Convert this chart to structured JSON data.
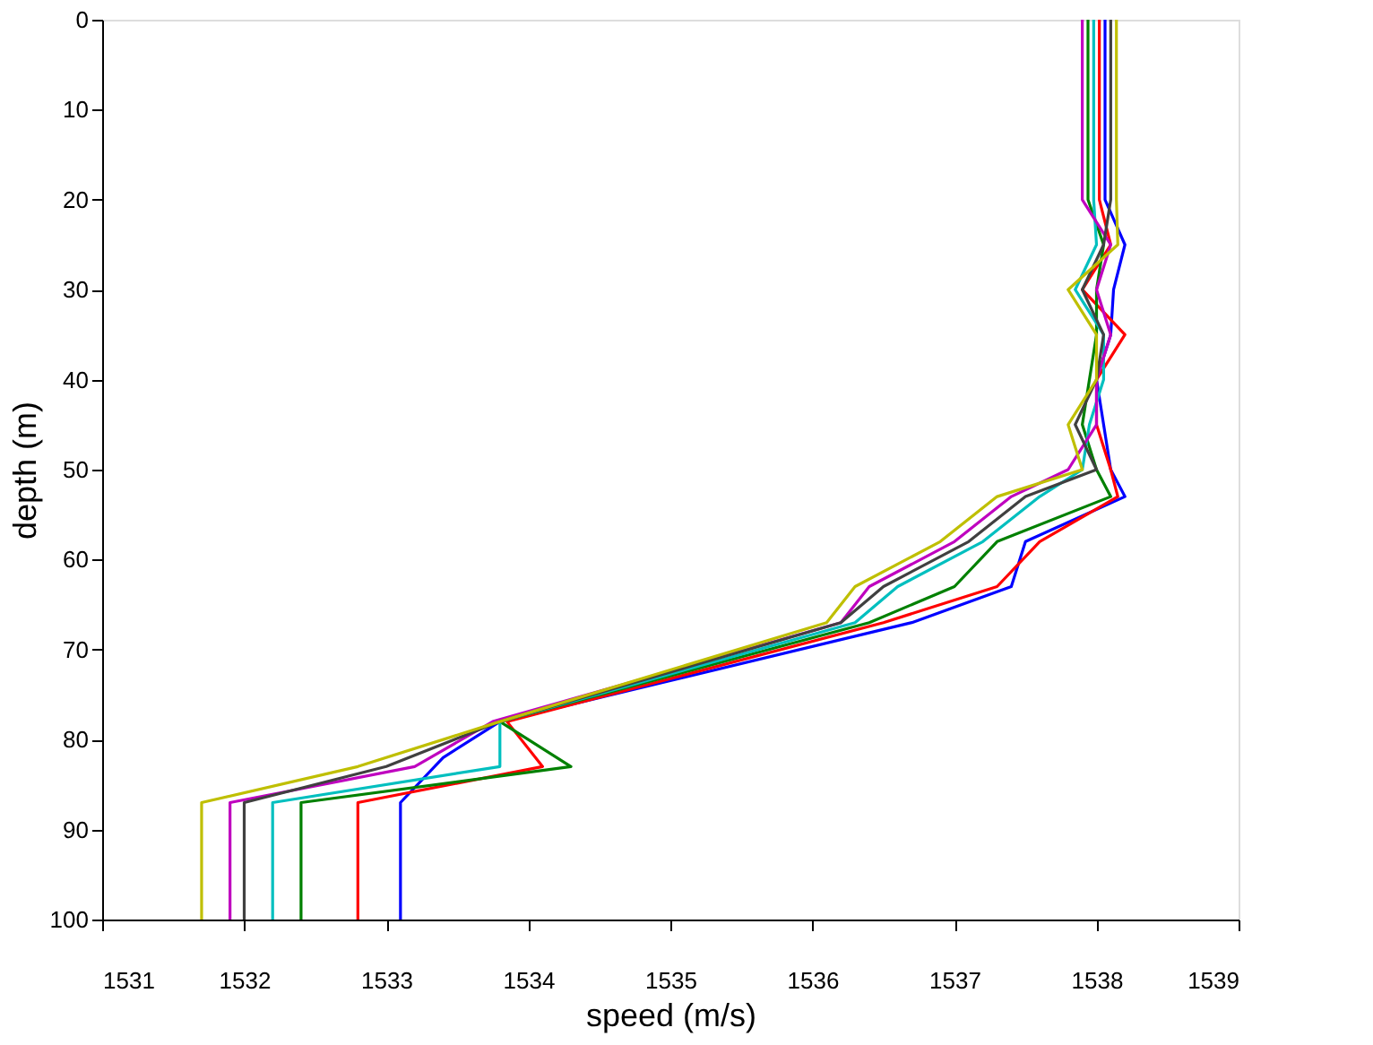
{
  "chart_data": {
    "type": "line",
    "xlabel": "speed (m/s)",
    "ylabel": "depth (m)",
    "xlim": [
      1531,
      1539
    ],
    "xticks": [
      1531,
      1532,
      1533,
      1534,
      1535,
      1536,
      1537,
      1538,
      1539
    ],
    "ylim": [
      100,
      0
    ],
    "yticks": [
      0,
      10,
      20,
      30,
      40,
      50,
      60,
      70,
      80,
      90,
      100
    ],
    "grid": false,
    "legend": false,
    "line_style": "solid",
    "marker": "none",
    "series": [
      {
        "color": "#0000ff",
        "x": [
          1538.06,
          1538.06,
          1538.2,
          1538.12,
          1538.1,
          1538.0,
          1538.05,
          1538.1,
          1538.2,
          1537.5,
          1537.4,
          1536.7,
          1533.8,
          1533.4,
          1533.1,
          1533.1
        ],
        "values": [
          0,
          20,
          25,
          30,
          35,
          40,
          45,
          50,
          53,
          58,
          63,
          67,
          78,
          82,
          87,
          100
        ]
      },
      {
        "color": "#ff0000",
        "x": [
          1538.02,
          1538.02,
          1538.1,
          1537.9,
          1538.2,
          1538.0,
          1538.0,
          1538.1,
          1538.15,
          1537.6,
          1537.3,
          1536.5,
          1533.85,
          1534.1,
          1532.8,
          1532.8
        ],
        "values": [
          0,
          20,
          25,
          30,
          35,
          40,
          45,
          50,
          53,
          58,
          63,
          67,
          78,
          83,
          87,
          100
        ]
      },
      {
        "color": "#008000",
        "x": [
          1537.94,
          1537.94,
          1538.05,
          1538.0,
          1538.0,
          1537.95,
          1537.9,
          1538.0,
          1538.1,
          1537.3,
          1537.0,
          1536.4,
          1533.8,
          1534.3,
          1532.4,
          1532.4
        ],
        "values": [
          0,
          20,
          25,
          30,
          35,
          40,
          45,
          50,
          53,
          58,
          63,
          67,
          78,
          83,
          87,
          100
        ]
      },
      {
        "color": "#00bfbf",
        "x": [
          1537.98,
          1537.98,
          1538.0,
          1537.85,
          1538.05,
          1538.05,
          1537.95,
          1537.9,
          1537.6,
          1537.2,
          1536.6,
          1536.3,
          1533.8,
          1533.8,
          1532.2,
          1532.2
        ],
        "values": [
          0,
          20,
          25,
          30,
          35,
          40,
          45,
          50,
          53,
          58,
          63,
          67,
          78,
          83,
          87,
          100
        ]
      },
      {
        "color": "#bf00bf",
        "x": [
          1537.9,
          1537.9,
          1538.1,
          1538.0,
          1538.1,
          1538.0,
          1538.0,
          1537.8,
          1537.4,
          1537.0,
          1536.4,
          1536.2,
          1533.75,
          1533.2,
          1531.9,
          1531.9
        ],
        "values": [
          0,
          20,
          25,
          30,
          35,
          40,
          45,
          50,
          53,
          58,
          63,
          67,
          78,
          83,
          87,
          100
        ]
      },
      {
        "color": "#404040",
        "x": [
          1538.1,
          1538.1,
          1538.05,
          1537.9,
          1538.05,
          1538.0,
          1537.85,
          1538.0,
          1537.5,
          1537.1,
          1536.5,
          1536.2,
          1533.8,
          1533.0,
          1532.0,
          1532.0
        ],
        "values": [
          0,
          20,
          25,
          30,
          35,
          40,
          45,
          50,
          53,
          58,
          63,
          67,
          78,
          83,
          87,
          100
        ]
      },
      {
        "color": "#bfbf00",
        "x": [
          1538.14,
          1538.14,
          1538.15,
          1537.8,
          1538.0,
          1538.0,
          1537.8,
          1537.9,
          1537.3,
          1536.9,
          1536.3,
          1536.1,
          1533.8,
          1532.8,
          1531.7,
          1531.7
        ],
        "values": [
          0,
          20,
          25,
          30,
          35,
          40,
          45,
          50,
          53,
          58,
          63,
          67,
          78,
          83,
          87,
          100
        ]
      }
    ]
  }
}
